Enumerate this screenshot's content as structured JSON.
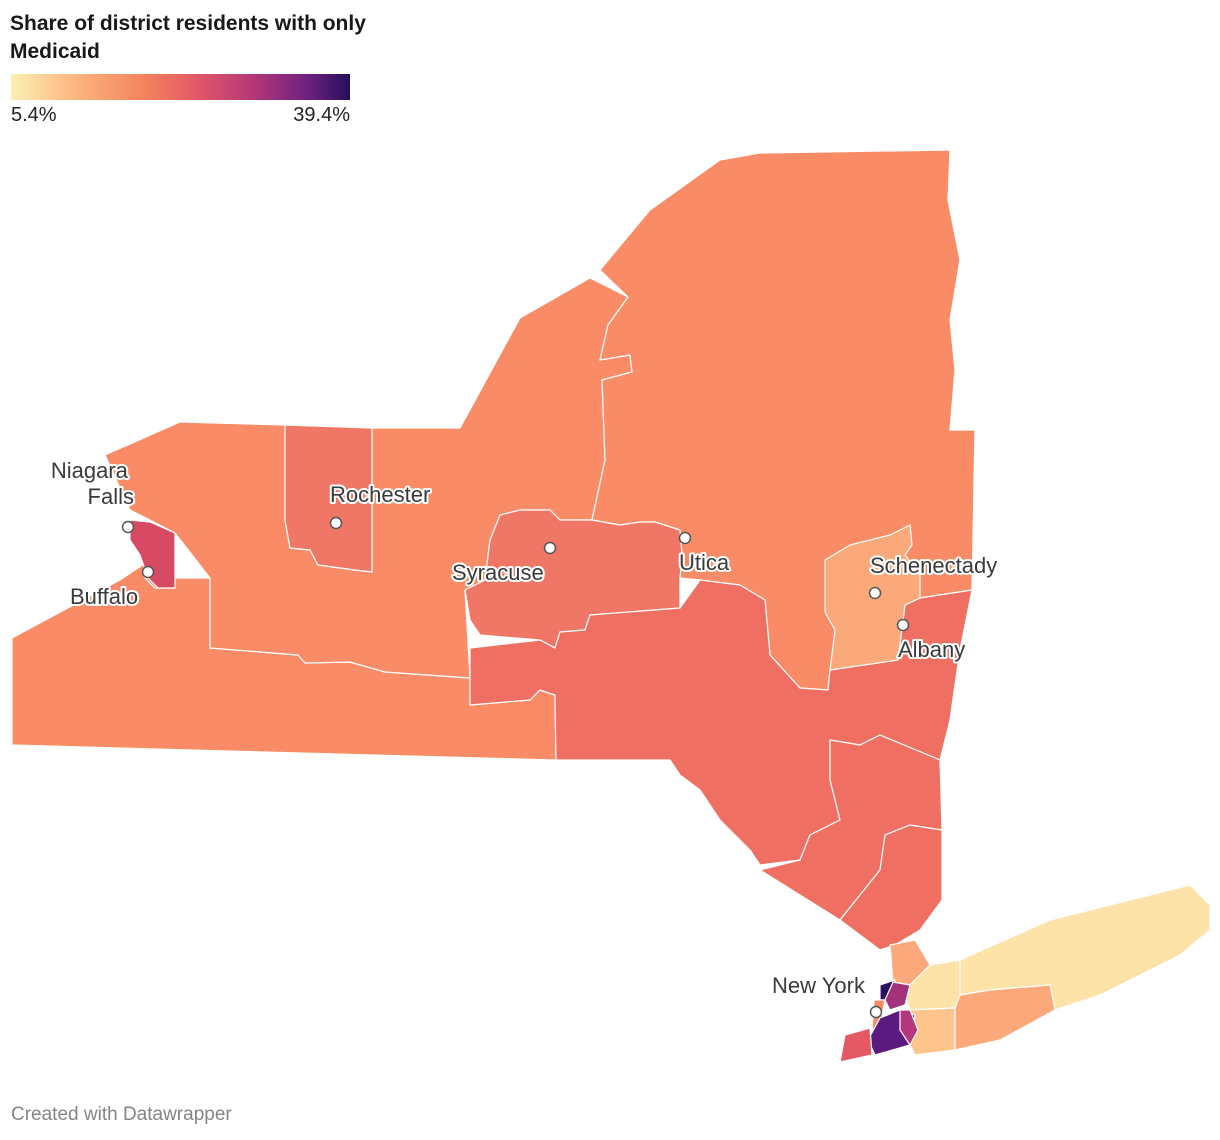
{
  "header": {
    "title": "Share of district residents with only Medicaid"
  },
  "legend": {
    "min_label": "5.4%",
    "max_label": "39.4%",
    "min_value": 5.4,
    "max_value": 39.4,
    "colors": [
      "#fde9a9",
      "#fbb47f",
      "#f4845f",
      "#e35a64",
      "#b5367b",
      "#74207f",
      "#2c0f5c"
    ]
  },
  "cities": [
    {
      "id": "niagara-falls",
      "label_lines": [
        "Niagara",
        "Falls"
      ]
    },
    {
      "id": "buffalo",
      "label_lines": [
        "Buffalo"
      ]
    },
    {
      "id": "rochester",
      "label_lines": [
        "Rochester"
      ]
    },
    {
      "id": "syracuse",
      "label_lines": [
        "Syracuse"
      ]
    },
    {
      "id": "utica",
      "label_lines": [
        "Utica"
      ]
    },
    {
      "id": "schenectady",
      "label_lines": [
        "Schenectady"
      ]
    },
    {
      "id": "albany",
      "label_lines": [
        "Albany"
      ]
    },
    {
      "id": "new-york",
      "label_lines": [
        "New York"
      ]
    }
  ],
  "map_colors": {
    "very_low": "#fde3a7",
    "low": "#fba97a",
    "mid_low": "#f98b66",
    "mid": "#f07766",
    "mid_high": "#ef6f63",
    "high": "#d84a63",
    "very_high": "#a4327a",
    "top": "#5b1a7d",
    "max": "#2b0f5c",
    "border": "#ffffff"
  },
  "footer": {
    "credit": "Created with Datawrapper"
  }
}
